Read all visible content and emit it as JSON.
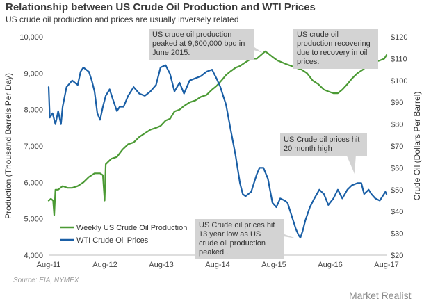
{
  "chart_data": {
    "type": "line",
    "title": "Relationship between US Crude Oil Production and WTI Prices",
    "subtitle": "US crude oil production and prices are usually inversely related",
    "x_ticks": [
      "Aug-11",
      "Aug-12",
      "Aug-13",
      "Aug-14",
      "Aug-15",
      "Aug-16",
      "Aug-17"
    ],
    "ylabel_left": "Production (Thousand  Barrels Per Day)",
    "ylabel_right": "Crude Oil (Dollars Per Barrel)",
    "ylim_left": [
      4000,
      10000
    ],
    "ylim_right": [
      20,
      120
    ],
    "yticks_left": [
      "4,000",
      "5,000",
      "6,000",
      "7,000",
      "8,000",
      "9,000",
      "10,000"
    ],
    "yticks_right": [
      "$20",
      "$30",
      "$40",
      "$50",
      "$60",
      "$70",
      "$80",
      "$90",
      "$100",
      "$110",
      "$120"
    ],
    "grid": false,
    "legend_position": "bottom-left",
    "series": [
      {
        "name": "Weekly US Crude Oil Production",
        "axis": "left",
        "color": "#4b9a34",
        "points": [
          [
            2011.58,
            5500
          ],
          [
            2011.62,
            5550
          ],
          [
            2011.66,
            5500
          ],
          [
            2011.68,
            5100
          ],
          [
            2011.7,
            5800
          ],
          [
            2011.75,
            5800
          ],
          [
            2011.83,
            5900
          ],
          [
            2011.92,
            5850
          ],
          [
            2012.0,
            5850
          ],
          [
            2012.1,
            5900
          ],
          [
            2012.2,
            6000
          ],
          [
            2012.3,
            6150
          ],
          [
            2012.4,
            6250
          ],
          [
            2012.5,
            6250
          ],
          [
            2012.55,
            6200
          ],
          [
            2012.58,
            5500
          ],
          [
            2012.6,
            6500
          ],
          [
            2012.7,
            6650
          ],
          [
            2012.8,
            6700
          ],
          [
            2012.9,
            6900
          ],
          [
            2013.0,
            7050
          ],
          [
            2013.1,
            7100
          ],
          [
            2013.2,
            7250
          ],
          [
            2013.3,
            7350
          ],
          [
            2013.4,
            7450
          ],
          [
            2013.5,
            7500
          ],
          [
            2013.58,
            7550
          ],
          [
            2013.67,
            7700
          ],
          [
            2013.75,
            7750
          ],
          [
            2013.83,
            7950
          ],
          [
            2013.92,
            8000
          ],
          [
            2014.0,
            8100
          ],
          [
            2014.1,
            8200
          ],
          [
            2014.2,
            8250
          ],
          [
            2014.3,
            8350
          ],
          [
            2014.4,
            8400
          ],
          [
            2014.5,
            8550
          ],
          [
            2014.58,
            8650
          ],
          [
            2014.67,
            8800
          ],
          [
            2014.75,
            8950
          ],
          [
            2014.83,
            9050
          ],
          [
            2014.92,
            9150
          ],
          [
            2015.0,
            9200
          ],
          [
            2015.1,
            9300
          ],
          [
            2015.2,
            9400
          ],
          [
            2015.3,
            9400
          ],
          [
            2015.45,
            9600
          ],
          [
            2015.5,
            9550
          ],
          [
            2015.58,
            9450
          ],
          [
            2015.67,
            9350
          ],
          [
            2015.75,
            9300
          ],
          [
            2015.83,
            9250
          ],
          [
            2015.92,
            9200
          ],
          [
            2016.0,
            9150
          ],
          [
            2016.1,
            9100
          ],
          [
            2016.2,
            9000
          ],
          [
            2016.3,
            8800
          ],
          [
            2016.4,
            8700
          ],
          [
            2016.5,
            8550
          ],
          [
            2016.58,
            8500
          ],
          [
            2016.67,
            8450
          ],
          [
            2016.75,
            8450
          ],
          [
            2016.83,
            8550
          ],
          [
            2016.92,
            8700
          ],
          [
            2017.0,
            8850
          ],
          [
            2017.1,
            9000
          ],
          [
            2017.2,
            9100
          ],
          [
            2017.3,
            9250
          ],
          [
            2017.4,
            9300
          ],
          [
            2017.5,
            9350
          ],
          [
            2017.58,
            9400
          ],
          [
            2017.62,
            9500
          ]
        ]
      },
      {
        "name": "WTI Crude Oil Prices",
        "axis": "right",
        "color": "#1a5fa6",
        "points": [
          [
            2011.58,
            97
          ],
          [
            2011.6,
            83
          ],
          [
            2011.65,
            85
          ],
          [
            2011.7,
            80
          ],
          [
            2011.75,
            86
          ],
          [
            2011.8,
            80
          ],
          [
            2011.83,
            88
          ],
          [
            2011.9,
            97
          ],
          [
            2012.0,
            100
          ],
          [
            2012.1,
            98
          ],
          [
            2012.15,
            104
          ],
          [
            2012.2,
            106
          ],
          [
            2012.25,
            105
          ],
          [
            2012.3,
            104
          ],
          [
            2012.35,
            100
          ],
          [
            2012.4,
            95
          ],
          [
            2012.45,
            85
          ],
          [
            2012.5,
            82
          ],
          [
            2012.55,
            88
          ],
          [
            2012.6,
            93
          ],
          [
            2012.67,
            96
          ],
          [
            2012.72,
            92
          ],
          [
            2012.8,
            86
          ],
          [
            2012.85,
            88
          ],
          [
            2012.92,
            88
          ],
          [
            2013.0,
            93
          ],
          [
            2013.1,
            97
          ],
          [
            2013.2,
            94
          ],
          [
            2013.3,
            93
          ],
          [
            2013.4,
            95
          ],
          [
            2013.5,
            98
          ],
          [
            2013.58,
            106
          ],
          [
            2013.67,
            107
          ],
          [
            2013.75,
            103
          ],
          [
            2013.83,
            95
          ],
          [
            2013.92,
            99
          ],
          [
            2014.0,
            94
          ],
          [
            2014.1,
            100
          ],
          [
            2014.2,
            101
          ],
          [
            2014.3,
            102
          ],
          [
            2014.4,
            104
          ],
          [
            2014.5,
            105
          ],
          [
            2014.58,
            101
          ],
          [
            2014.65,
            97
          ],
          [
            2014.7,
            93
          ],
          [
            2014.75,
            89
          ],
          [
            2014.83,
            78
          ],
          [
            2014.92,
            66
          ],
          [
            2015.0,
            53
          ],
          [
            2015.05,
            48
          ],
          [
            2015.1,
            47
          ],
          [
            2015.2,
            49
          ],
          [
            2015.3,
            57
          ],
          [
            2015.35,
            60
          ],
          [
            2015.42,
            60
          ],
          [
            2015.5,
            55
          ],
          [
            2015.58,
            44
          ],
          [
            2015.65,
            42
          ],
          [
            2015.72,
            46
          ],
          [
            2015.8,
            45
          ],
          [
            2015.85,
            44
          ],
          [
            2015.9,
            40
          ],
          [
            2015.95,
            36
          ],
          [
            2016.0,
            32
          ],
          [
            2016.05,
            29
          ],
          [
            2016.08,
            28
          ],
          [
            2016.12,
            31
          ],
          [
            2016.17,
            36
          ],
          [
            2016.25,
            42
          ],
          [
            2016.33,
            46
          ],
          [
            2016.42,
            50
          ],
          [
            2016.5,
            48
          ],
          [
            2016.58,
            43
          ],
          [
            2016.67,
            46
          ],
          [
            2016.75,
            50
          ],
          [
            2016.83,
            46
          ],
          [
            2016.92,
            50
          ],
          [
            2017.0,
            52
          ],
          [
            2017.1,
            53
          ],
          [
            2017.17,
            53
          ],
          [
            2017.22,
            48
          ],
          [
            2017.3,
            50
          ],
          [
            2017.35,
            48
          ],
          [
            2017.42,
            46
          ],
          [
            2017.5,
            45
          ],
          [
            2017.55,
            47
          ],
          [
            2017.6,
            49
          ],
          [
            2017.62,
            48
          ]
        ]
      }
    ]
  },
  "annotations": [
    "US crude oil production peaked at 9,600,000 bpd in June 2015.",
    "US crude oil production recovering due to recovery in oil prices.",
    "US Crude oil prices hit 20 month high",
    "US Crude oil prices hit 13 year low as US crude oil production peaked ."
  ],
  "source": "Source: EIA, NYMEX",
  "brand": "Market Realist",
  "colors": {
    "annotation_box": "#d3d3d3",
    "axis": "#bdbdbd"
  }
}
